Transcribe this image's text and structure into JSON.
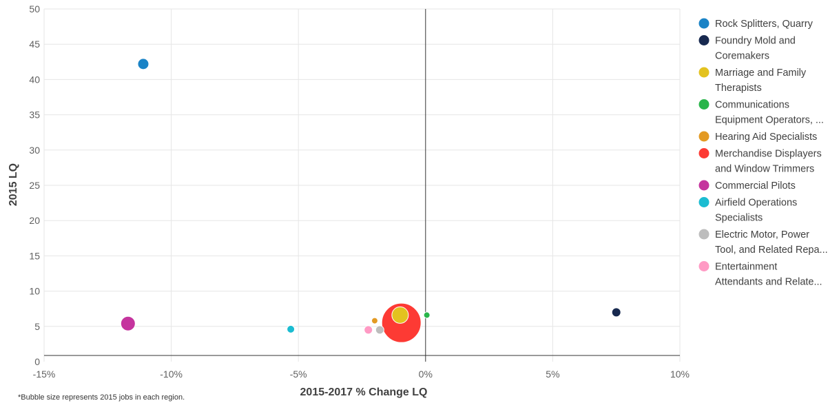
{
  "chart_data": {
    "type": "scatter",
    "subtype": "bubble",
    "xlabel": "2015-2017 % Change LQ",
    "ylabel": "2015 LQ",
    "xlim": [
      -15,
      10
    ],
    "ylim": [
      0,
      50
    ],
    "x_ticks": [
      -15,
      -10,
      -5,
      0,
      5,
      10
    ],
    "x_tick_labels": [
      "-15%",
      "-10%",
      "-5%",
      "0%",
      "5%",
      "10%"
    ],
    "y_ticks": [
      0,
      5,
      10,
      15,
      20,
      25,
      30,
      35,
      40,
      45,
      50
    ],
    "y_tick_labels": [
      "0",
      "5",
      "10",
      "15",
      "20",
      "25",
      "30",
      "35",
      "40",
      "45",
      "50"
    ],
    "grid": true,
    "legend_position": "right",
    "footnote": "*Bubble size represents 2015 jobs in each region.",
    "series": [
      {
        "name": "Rock Splitters, Quarry",
        "legend_lines": [
          "Rock Splitters, Quarry"
        ],
        "color": "#1a83c6",
        "x": -11.1,
        "y": 42.2,
        "size": 14
      },
      {
        "name": "Foundry Mold and Coremakers",
        "legend_lines": [
          "Foundry Mold and",
          "Coremakers"
        ],
        "color": "#17294f",
        "x": 7.5,
        "y": 7.0,
        "size": 11
      },
      {
        "name": "Marriage and Family Therapists",
        "legend_lines": [
          "Marriage and Family",
          "Therapists"
        ],
        "color": "#e3c21f",
        "x": -1.0,
        "y": 6.6,
        "size": 22
      },
      {
        "name": "Communications Equipment Operators, ...",
        "legend_lines": [
          "Communications",
          "Equipment Operators, ..."
        ],
        "color": "#29b54a",
        "x": 0.05,
        "y": 6.6,
        "size": 7
      },
      {
        "name": "Hearing Aid Specialists",
        "legend_lines": [
          "Hearing Aid Specialists"
        ],
        "color": "#e39a23",
        "x": -2.0,
        "y": 5.8,
        "size": 7
      },
      {
        "name": "Merchandise Displayers and Window Trimmers",
        "legend_lines": [
          "Merchandise Displayers",
          "and Window Trimmers"
        ],
        "color": "#fd3a34",
        "x": -0.95,
        "y": 5.5,
        "size": 43
      },
      {
        "name": "Commercial Pilots",
        "legend_lines": [
          "Commercial Pilots"
        ],
        "color": "#c5349e",
        "x": -11.7,
        "y": 5.4,
        "size": 19
      },
      {
        "name": "Airfield Operations Specialists",
        "legend_lines": [
          "Airfield Operations",
          "Specialists"
        ],
        "color": "#1bbcd1",
        "x": -5.3,
        "y": 4.6,
        "size": 9
      },
      {
        "name": "Electric Motor, Power Tool, and Related Repa...",
        "legend_lines": [
          "Electric Motor, Power",
          "Tool, and Related Repa..."
        ],
        "color": "#bdbdbd",
        "x": -1.8,
        "y": 4.5,
        "size": 10
      },
      {
        "name": "Entertainment Attendants and Relate...",
        "legend_lines": [
          "Entertainment",
          "Attendants and Relate..."
        ],
        "color": "#ff9ac4",
        "x": -2.25,
        "y": 4.5,
        "size": 10
      }
    ],
    "draw_order": [
      5,
      2,
      8,
      9,
      4,
      3,
      0,
      1,
      6,
      7
    ]
  }
}
